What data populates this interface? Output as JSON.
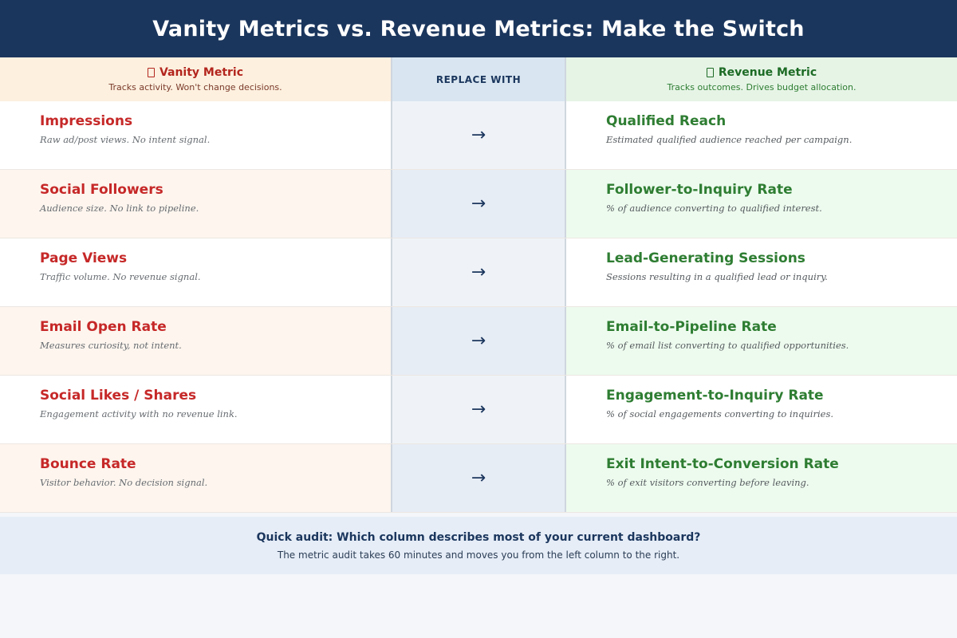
{
  "title": "Vanity Metrics vs. Revenue Metrics: Make the Switch",
  "header": {
    "vanity": {
      "title": "Vanity Metric",
      "subtitle": "Tracks activity. Won't change decisions.",
      "icon": "missing-glyph-icon"
    },
    "middle": "REPLACE WITH",
    "revenue": {
      "title": "Revenue Metric",
      "subtitle": "Tracks outcomes. Drives budget allocation.",
      "icon": "missing-glyph-icon"
    }
  },
  "rows": [
    {
      "vanity_name": "Impressions",
      "vanity_desc": "Raw ad/post views. No intent signal.",
      "arrow": "→",
      "revenue_name": "Qualified Reach",
      "revenue_desc": "Estimated qualified audience reached per campaign."
    },
    {
      "vanity_name": "Social Followers",
      "vanity_desc": "Audience size. No link to pipeline.",
      "arrow": "→",
      "revenue_name": "Follower-to-Inquiry Rate",
      "revenue_desc": "% of audience converting to qualified interest."
    },
    {
      "vanity_name": "Page Views",
      "vanity_desc": "Traffic volume. No revenue signal.",
      "arrow": "→",
      "revenue_name": "Lead-Generating Sessions",
      "revenue_desc": "Sessions resulting in a qualified lead or inquiry."
    },
    {
      "vanity_name": "Email Open Rate",
      "vanity_desc": "Measures curiosity, not intent.",
      "arrow": "→",
      "revenue_name": "Email-to-Pipeline Rate",
      "revenue_desc": "% of email list converting to qualified opportunities."
    },
    {
      "vanity_name": "Social Likes / Shares",
      "vanity_desc": "Engagement activity with no revenue link.",
      "arrow": "→",
      "revenue_name": "Engagement-to-Inquiry Rate",
      "revenue_desc": "% of social engagements converting to inquiries."
    },
    {
      "vanity_name": "Bounce Rate",
      "vanity_desc": "Visitor behavior. No decision signal.",
      "arrow": "→",
      "revenue_name": "Exit Intent-to-Conversion Rate",
      "revenue_desc": "% of exit visitors converting before leaving."
    }
  ],
  "footer": {
    "question": "Quick audit: Which column describes most of your current dashboard?",
    "subtext": "The metric audit takes 60 minutes and moves you from the left column to the right."
  },
  "colors": {
    "title_bg": "#1b365d",
    "vanity_accent": "#c62828",
    "revenue_accent": "#2e7d32",
    "vanity_header_bg": "#fdf0df",
    "middle_header_bg": "#d9e6f1",
    "revenue_header_bg": "#e6f4e6"
  }
}
